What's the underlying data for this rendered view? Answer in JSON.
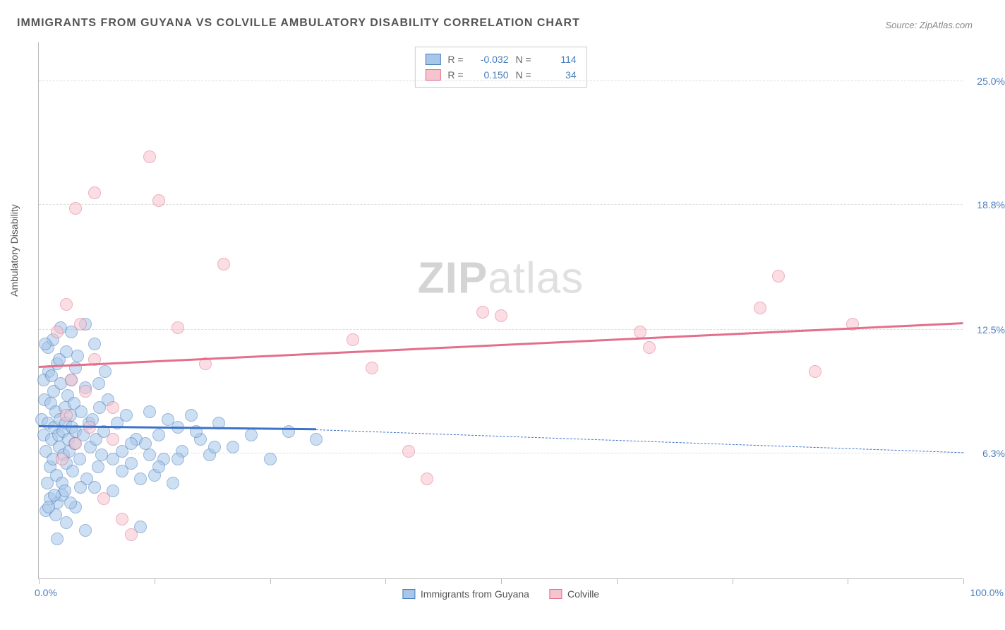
{
  "title": "IMMIGRANTS FROM GUYANA VS COLVILLE AMBULATORY DISABILITY CORRELATION CHART",
  "source": "Source: ZipAtlas.com",
  "watermark_a": "ZIP",
  "watermark_b": "atlas",
  "ylabel": "Ambulatory Disability",
  "chart": {
    "type": "scatter",
    "background_color": "#ffffff",
    "grid_color": "#dddddd",
    "axis_color": "#bbbbbb",
    "xlim": [
      0,
      100
    ],
    "ylim": [
      0,
      27
    ],
    "xlim_labels": {
      "min": "0.0%",
      "max": "100.0%"
    },
    "xtick_positions": [
      0,
      12.5,
      25,
      37.5,
      50,
      62.5,
      75,
      87.5,
      100
    ],
    "yticks": [
      {
        "v": 6.3,
        "label": "6.3%"
      },
      {
        "v": 12.5,
        "label": "12.5%"
      },
      {
        "v": 18.8,
        "label": "18.8%"
      },
      {
        "v": 25.0,
        "label": "25.0%"
      }
    ],
    "label_color": "#4a7ebb",
    "label_fontsize": 14,
    "point_radius": 9,
    "point_opacity": 0.55,
    "series": [
      {
        "id": "guyana",
        "name": "Immigrants from Guyana",
        "color_fill": "#a6c6ea",
        "color_stroke": "#4a7ebb",
        "R": "-0.032",
        "N": "114",
        "trend": {
          "x0": 0,
          "y0": 7.6,
          "x1_solid": 30,
          "y1_solid": 7.45,
          "x1": 100,
          "y1": 6.3,
          "color": "#3c72c8",
          "width": 3
        },
        "points": [
          [
            0.3,
            8.0
          ],
          [
            0.5,
            7.2
          ],
          [
            0.6,
            9.0
          ],
          [
            0.8,
            6.4
          ],
          [
            1.0,
            7.8
          ],
          [
            1.1,
            10.4
          ],
          [
            1.2,
            5.6
          ],
          [
            1.3,
            8.8
          ],
          [
            1.4,
            7.0
          ],
          [
            1.5,
            6.0
          ],
          [
            1.6,
            9.4
          ],
          [
            1.7,
            7.6
          ],
          [
            1.8,
            8.4
          ],
          [
            1.9,
            5.2
          ],
          [
            2.0,
            10.8
          ],
          [
            2.1,
            7.2
          ],
          [
            2.2,
            6.6
          ],
          [
            2.3,
            8.0
          ],
          [
            2.4,
            9.8
          ],
          [
            2.5,
            4.8
          ],
          [
            2.6,
            7.4
          ],
          [
            2.7,
            6.2
          ],
          [
            2.8,
            8.6
          ],
          [
            2.9,
            7.8
          ],
          [
            3.0,
            5.8
          ],
          [
            3.1,
            9.2
          ],
          [
            3.2,
            7.0
          ],
          [
            3.3,
            6.4
          ],
          [
            3.4,
            8.2
          ],
          [
            3.5,
            10.0
          ],
          [
            3.6,
            7.6
          ],
          [
            3.7,
            5.4
          ],
          [
            3.8,
            8.8
          ],
          [
            3.9,
            6.8
          ],
          [
            4.0,
            7.4
          ],
          [
            4.2,
            11.2
          ],
          [
            4.4,
            6.0
          ],
          [
            4.6,
            8.4
          ],
          [
            4.8,
            7.2
          ],
          [
            5.0,
            9.6
          ],
          [
            5.2,
            5.0
          ],
          [
            5.4,
            7.8
          ],
          [
            5.6,
            6.6
          ],
          [
            5.8,
            8.0
          ],
          [
            6.0,
            11.8
          ],
          [
            6.2,
            7.0
          ],
          [
            6.4,
            5.6
          ],
          [
            6.6,
            8.6
          ],
          [
            6.8,
            6.2
          ],
          [
            7.0,
            7.4
          ],
          [
            7.5,
            9.0
          ],
          [
            8.0,
            4.4
          ],
          [
            8.5,
            7.8
          ],
          [
            9.0,
            6.4
          ],
          [
            9.5,
            8.2
          ],
          [
            10.0,
            5.8
          ],
          [
            10.5,
            7.0
          ],
          [
            11.0,
            2.6
          ],
          [
            11.5,
            6.8
          ],
          [
            12.0,
            8.4
          ],
          [
            12.5,
            5.2
          ],
          [
            13.0,
            7.2
          ],
          [
            13.5,
            6.0
          ],
          [
            14.0,
            8.0
          ],
          [
            14.5,
            4.8
          ],
          [
            15.0,
            7.6
          ],
          [
            15.5,
            6.4
          ],
          [
            16.5,
            8.2
          ],
          [
            17.5,
            7.0
          ],
          [
            18.5,
            6.2
          ],
          [
            19.5,
            7.8
          ],
          [
            21.0,
            6.6
          ],
          [
            23.0,
            7.2
          ],
          [
            25.0,
            6.0
          ],
          [
            27.0,
            7.4
          ],
          [
            30.0,
            7.0
          ],
          [
            1.0,
            11.6
          ],
          [
            1.5,
            12.0
          ],
          [
            2.0,
            3.8
          ],
          [
            2.5,
            4.2
          ],
          [
            3.0,
            11.4
          ],
          [
            3.5,
            12.4
          ],
          [
            4.0,
            3.6
          ],
          [
            4.5,
            4.6
          ],
          [
            5.0,
            12.8
          ],
          [
            0.8,
            3.4
          ],
          [
            1.2,
            4.0
          ],
          [
            1.8,
            3.2
          ],
          [
            2.2,
            11.0
          ],
          [
            2.8,
            4.4
          ],
          [
            3.4,
            3.8
          ],
          [
            4.0,
            10.6
          ],
          [
            0.5,
            10.0
          ],
          [
            0.7,
            11.8
          ],
          [
            0.9,
            4.8
          ],
          [
            1.1,
            3.6
          ],
          [
            1.4,
            10.2
          ],
          [
            1.7,
            4.2
          ],
          [
            2.0,
            2.0
          ],
          [
            6.5,
            9.8
          ],
          [
            7.2,
            10.4
          ],
          [
            8.0,
            6.0
          ],
          [
            9.0,
            5.4
          ],
          [
            10.0,
            6.8
          ],
          [
            11.0,
            5.0
          ],
          [
            12.0,
            6.2
          ],
          [
            13.0,
            5.6
          ],
          [
            2.4,
            12.6
          ],
          [
            3.0,
            2.8
          ],
          [
            5.0,
            2.4
          ],
          [
            15.0,
            6.0
          ],
          [
            17.0,
            7.4
          ],
          [
            19.0,
            6.6
          ],
          [
            6.0,
            4.6
          ]
        ]
      },
      {
        "id": "colville",
        "name": "Colville",
        "color_fill": "#f6c4ce",
        "color_stroke": "#e36f8a",
        "R": "0.150",
        "N": "34",
        "trend": {
          "x0": 0,
          "y0": 10.6,
          "x1_solid": 100,
          "y1_solid": 12.8,
          "x1": 100,
          "y1": 12.8,
          "color": "#e36f8a",
          "width": 3
        },
        "points": [
          [
            2.0,
            12.4
          ],
          [
            3.0,
            8.2
          ],
          [
            3.5,
            10.0
          ],
          [
            4.0,
            6.8
          ],
          [
            4.5,
            12.8
          ],
          [
            5.0,
            9.4
          ],
          [
            5.5,
            7.6
          ],
          [
            6.0,
            11.0
          ],
          [
            7.0,
            4.0
          ],
          [
            8.0,
            8.6
          ],
          [
            9.0,
            3.0
          ],
          [
            10.0,
            2.2
          ],
          [
            12.0,
            21.2
          ],
          [
            13.0,
            19.0
          ],
          [
            15.0,
            12.6
          ],
          [
            18.0,
            10.8
          ],
          [
            20.0,
            15.8
          ],
          [
            34.0,
            12.0
          ],
          [
            36.0,
            10.6
          ],
          [
            40.0,
            6.4
          ],
          [
            42.0,
            5.0
          ],
          [
            48.0,
            13.4
          ],
          [
            50.0,
            13.2
          ],
          [
            65.0,
            12.4
          ],
          [
            66.0,
            11.6
          ],
          [
            78.0,
            13.6
          ],
          [
            80.0,
            15.2
          ],
          [
            84.0,
            10.4
          ],
          [
            88.0,
            12.8
          ],
          [
            4.0,
            18.6
          ],
          [
            6.0,
            19.4
          ],
          [
            8.0,
            7.0
          ],
          [
            3.0,
            13.8
          ],
          [
            2.5,
            6.0
          ]
        ]
      }
    ]
  }
}
